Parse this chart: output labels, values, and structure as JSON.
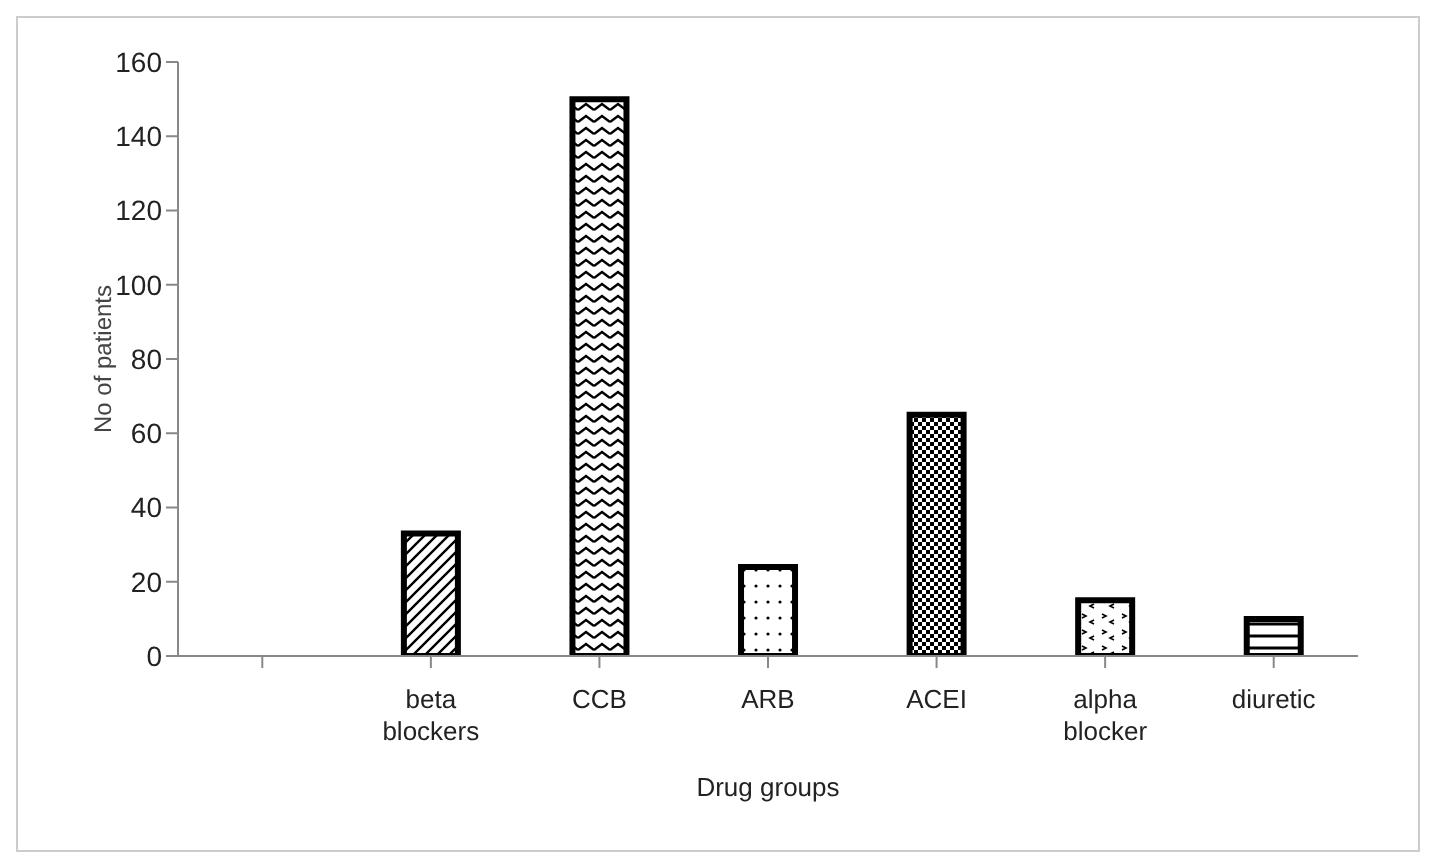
{
  "chart_data": {
    "type": "bar",
    "xlabel": "Drug groups",
    "ylabel": "No of patients",
    "categories": [
      null,
      "beta blockers",
      "CCB",
      "ARB",
      "ACEI",
      "alpha blocker",
      "diuretic"
    ],
    "values": [
      null,
      33,
      150,
      24,
      65,
      15,
      10
    ],
    "color": "#000000",
    "ylim": [
      0,
      160
    ],
    "yticks": [
      0,
      20,
      40,
      60,
      80,
      100,
      120,
      140,
      160
    ],
    "grid": false
  }
}
